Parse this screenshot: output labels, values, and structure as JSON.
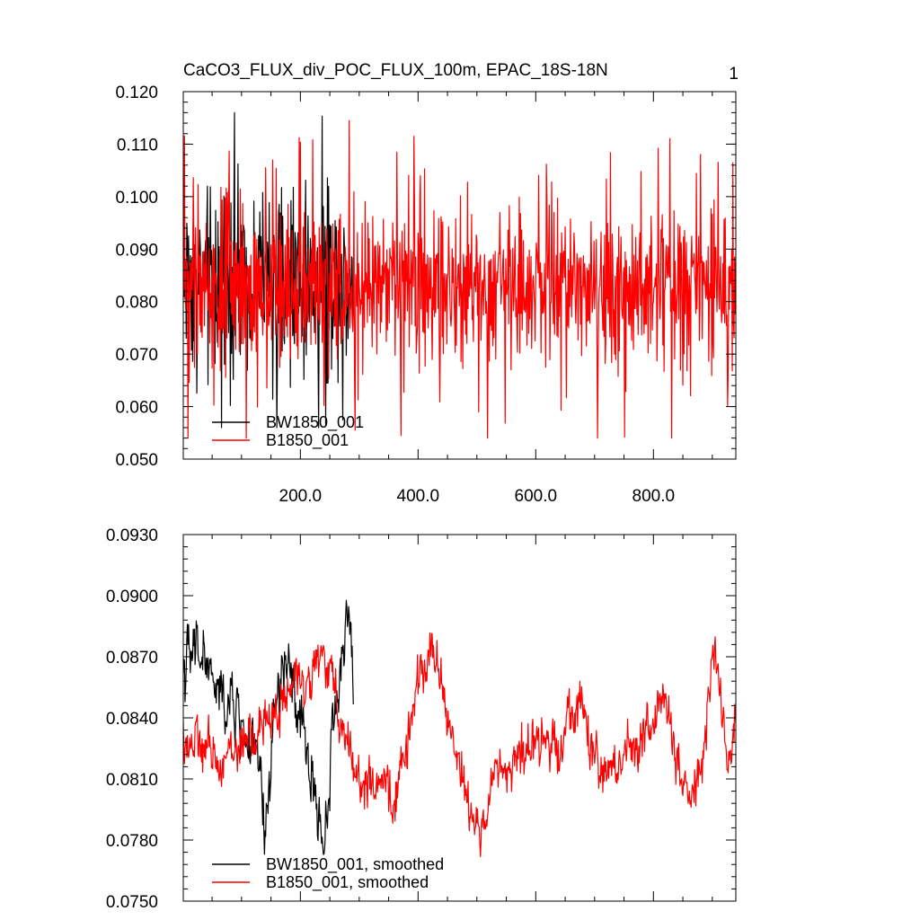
{
  "figure": {
    "title": "CaCO3_FLUX_div_POC_FLUX_100m, EPAC_18S-18N",
    "panel_number": "1"
  },
  "chart_data": [
    {
      "type": "line",
      "xlim": [
        1,
        940
      ],
      "ylim": [
        0.05,
        0.12
      ],
      "xticks": [
        200,
        400,
        600,
        800
      ],
      "xtick_labels": [
        "200.0",
        "400.0",
        "600.0",
        "800.0"
      ],
      "x_minor_step": 50,
      "yticks": [
        0.05,
        0.06,
        0.07,
        0.08,
        0.09,
        0.1,
        0.11,
        0.12
      ],
      "ytick_labels": [
        "0.050",
        "0.060",
        "0.070",
        "0.080",
        "0.090",
        "0.100",
        "0.110",
        "0.120"
      ],
      "y_minor_step": 0.002,
      "grid": false,
      "legend_position": "bottom-left",
      "series": [
        {
          "name": "BW1850_001",
          "color": "#000000",
          "x_start": 1,
          "x_end": 290,
          "pattern": "noisy",
          "mean": 0.0845,
          "amplitude": 0.012,
          "min": 0.056,
          "max": 0.116,
          "points": 290
        },
        {
          "name": "B1850_001",
          "color": "#ff0000",
          "x_start": 1,
          "x_end": 940,
          "pattern": "noisy",
          "mean": 0.0825,
          "amplitude": 0.011,
          "min": 0.054,
          "max": 0.1145,
          "points": 940
        }
      ]
    },
    {
      "type": "line",
      "xlim": [
        1,
        940
      ],
      "ylim": [
        0.075,
        0.093
      ],
      "xticks": [
        200,
        400,
        600,
        800
      ],
      "xtick_labels": [],
      "x_minor_step": 50,
      "yticks": [
        0.075,
        0.078,
        0.081,
        0.084,
        0.087,
        0.09,
        0.093
      ],
      "ytick_labels": [
        "0.0750",
        "0.0780",
        "0.0810",
        "0.0840",
        "0.0870",
        "0.0900",
        "0.0930"
      ],
      "y_minor_step": 0.0006,
      "grid": false,
      "legend_position": "bottom-left",
      "series": [
        {
          "name": "BW1850_001, smoothed",
          "color": "#000000",
          "x_start": 1,
          "x_end": 290,
          "pattern": "smooth",
          "mean": 0.0835,
          "amplitude": 0.0028,
          "min": 0.0773,
          "max": 0.0901,
          "points": 290,
          "keypoints": [
            [
              1,
              0.0865
            ],
            [
              30,
              0.0875
            ],
            [
              60,
              0.085
            ],
            [
              90,
              0.0845
            ],
            [
              110,
              0.083
            ],
            [
              130,
              0.0815
            ],
            [
              140,
              0.0778
            ],
            [
              155,
              0.084
            ],
            [
              175,
              0.087
            ],
            [
              200,
              0.0835
            ],
            [
              225,
              0.0805
            ],
            [
              240,
              0.0775
            ],
            [
              255,
              0.0835
            ],
            [
              275,
              0.088
            ],
            [
              282,
              0.09
            ],
            [
              290,
              0.0855
            ]
          ]
        },
        {
          "name": "B1850_001, smoothed",
          "color": "#ff0000",
          "x_start": 1,
          "x_end": 940,
          "pattern": "smooth",
          "mean": 0.0825,
          "amplitude": 0.0022,
          "min": 0.0762,
          "max": 0.0904,
          "points": 940,
          "keypoints": [
            [
              1,
              0.083
            ],
            [
              60,
              0.082
            ],
            [
              120,
              0.083
            ],
            [
              190,
              0.0855
            ],
            [
              240,
              0.087
            ],
            [
              300,
              0.081
            ],
            [
              360,
              0.08
            ],
            [
              420,
              0.088
            ],
            [
              460,
              0.083
            ],
            [
              500,
              0.078
            ],
            [
              530,
              0.081
            ],
            [
              560,
              0.082
            ],
            [
              640,
              0.083
            ],
            [
              670,
              0.085
            ],
            [
              710,
              0.081
            ],
            [
              780,
              0.083
            ],
            [
              820,
              0.085
            ],
            [
              850,
              0.08
            ],
            [
              880,
              0.081
            ],
            [
              905,
              0.0875
            ],
            [
              925,
              0.082
            ],
            [
              940,
              0.0835
            ]
          ]
        }
      ]
    }
  ]
}
